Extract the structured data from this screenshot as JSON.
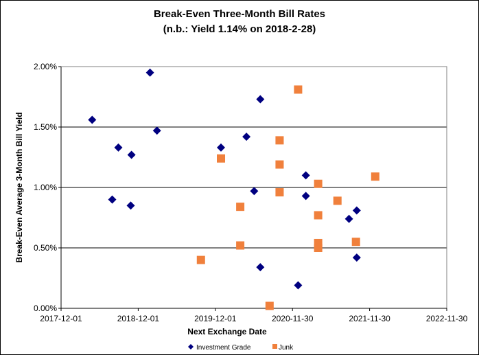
{
  "chart_data": {
    "type": "scatter",
    "title": "Break-Even Three-Month Bill Rates",
    "subtitle": "(n.b.: Yield 1.14% on 2018-2-28)",
    "xlabel": "Next Exchange Date",
    "ylabel": "Break-Even Average 3-Month  Bill Yield",
    "x_units": "decimal year",
    "xlim": [
      2017.917,
      2022.917
    ],
    "ylim": [
      0,
      2.0
    ],
    "x_ticks": [
      2017.917,
      2018.917,
      2019.917,
      2020.917,
      2021.917,
      2022.917
    ],
    "x_tick_labels": [
      "2017-12-01",
      "2018-12-01",
      "2019-12-01",
      "2020-11-30",
      "2021-11-30",
      "2022-11-30"
    ],
    "y_ticks": [
      0,
      0.5,
      1.0,
      1.5,
      2.0
    ],
    "y_tick_labels": [
      "0.00%",
      "0.50%",
      "1.00%",
      "1.50%",
      "2.00%"
    ],
    "grid": "horizontal",
    "legend_position": "bottom",
    "series": [
      {
        "name": "Investment Grade",
        "marker": "diamond",
        "color": "#000080",
        "points": [
          [
            2018.32,
            1.56
          ],
          [
            2018.66,
            1.33
          ],
          [
            2018.83,
            1.27
          ],
          [
            2019.07,
            1.95
          ],
          [
            2019.16,
            1.47
          ],
          [
            2018.58,
            0.9
          ],
          [
            2018.82,
            0.85
          ],
          [
            2019.99,
            1.33
          ],
          [
            2020.32,
            1.42
          ],
          [
            2020.5,
            1.73
          ],
          [
            2020.42,
            0.97
          ],
          [
            2020.5,
            0.34
          ],
          [
            2021.09,
            1.1
          ],
          [
            2021.09,
            0.93
          ],
          [
            2020.99,
            0.19
          ],
          [
            2021.75,
            0.81
          ],
          [
            2021.65,
            0.74
          ],
          [
            2021.75,
            0.42
          ]
        ]
      },
      {
        "name": "Junk",
        "marker": "square",
        "color": "#F0803C",
        "points": [
          [
            2019.73,
            0.4
          ],
          [
            2019.99,
            1.24
          ],
          [
            2020.24,
            0.84
          ],
          [
            2020.24,
            0.52
          ],
          [
            2020.99,
            1.81
          ],
          [
            2020.75,
            1.39
          ],
          [
            2020.75,
            1.19
          ],
          [
            2020.75,
            0.96
          ],
          [
            2020.62,
            0.02
          ],
          [
            2021.25,
            1.03
          ],
          [
            2021.25,
            0.77
          ],
          [
            2021.25,
            0.54
          ],
          [
            2021.25,
            0.5
          ],
          [
            2021.5,
            0.89
          ],
          [
            2021.74,
            0.55
          ],
          [
            2021.99,
            1.09
          ]
        ]
      }
    ]
  }
}
